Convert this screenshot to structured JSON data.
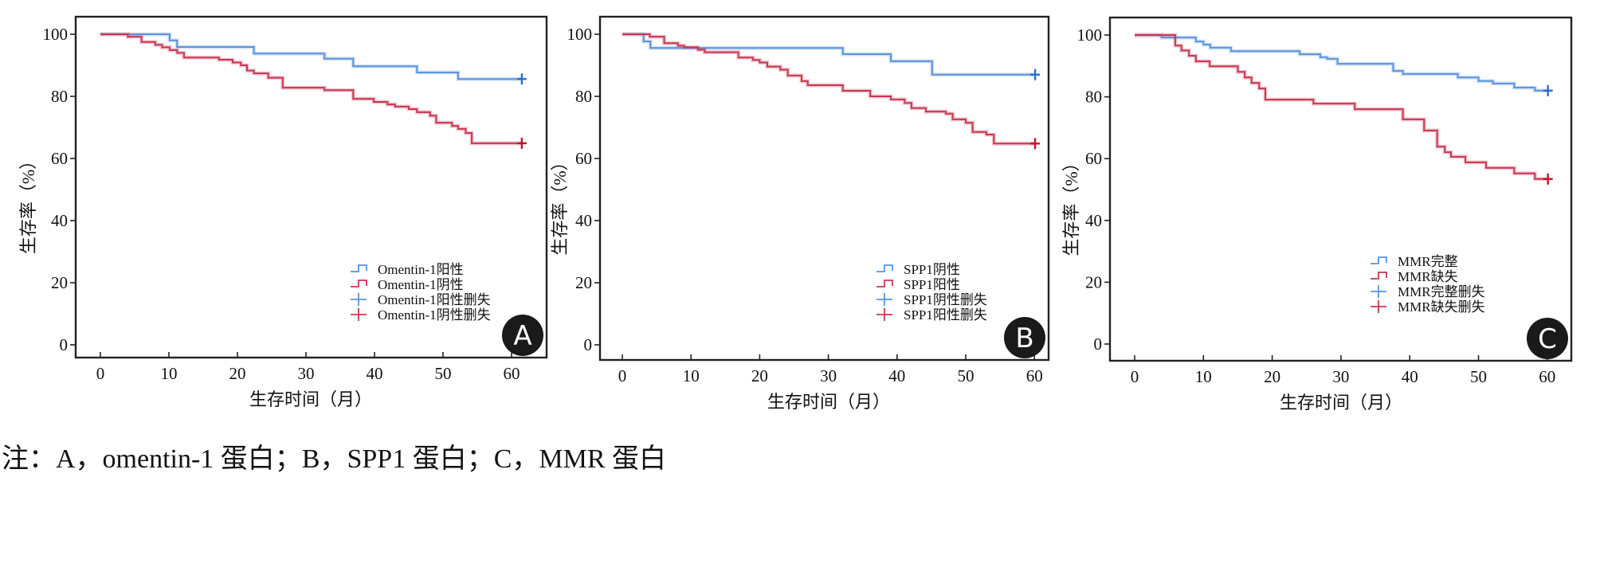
{
  "caption": "注：A，omentin-1 蛋白；B，SPP1 蛋白；C，MMR 蛋白",
  "colors": {
    "group1_line": "#5b93dc",
    "group2_line": "#c93652",
    "group1_censor": "#2f6bd0",
    "group2_censor": "#c0132e",
    "frame": "#222222",
    "badge": "#1a1a1a"
  },
  "chart_data": [
    {
      "type": "line",
      "subtype": "kaplan-meier step",
      "panel_label": "A",
      "xlabel": "生存时间（月）",
      "ylabel": "生存率（%）",
      "xlim": [
        -3,
        65
      ],
      "ylim": [
        -4,
        106
      ],
      "xticks": [
        0,
        10,
        20,
        30,
        40,
        50,
        60
      ],
      "yticks": [
        0,
        20,
        40,
        60,
        80,
        100
      ],
      "grid": false,
      "legend_position": "bottom-right",
      "legend": [
        "Omentin-1阳性",
        "Omentin-1阴性",
        "Omentin-1阳性删失",
        "Omentin-1阴性删失"
      ],
      "series": [
        {
          "name": "Omentin-1阳性",
          "color_key": "group1",
          "x": [
            0,
            10.1,
            11.2,
            22.4,
            32.7,
            36.9,
            46.2,
            52.2,
            61.5
          ],
          "y": [
            100,
            98.0,
            95.9,
            93.8,
            92.1,
            89.7,
            87.7,
            85.6,
            85.6
          ],
          "censor": {
            "x": 61.5,
            "y": 85.6
          }
        },
        {
          "name": "Omentin-1阴性",
          "color_key": "group2",
          "x": [
            0,
            4.0,
            6.0,
            8.0,
            9.0,
            10.1,
            11.2,
            12.2,
            17.3,
            19.3,
            20.5,
            21.4,
            22.4,
            24.5,
            26.6,
            32.7,
            36.9,
            39.9,
            41.9,
            43.0,
            45.0,
            46.2,
            48.1,
            49.0,
            51.3,
            52.2,
            53.3,
            54.2,
            61.5
          ],
          "y": [
            100,
            99.2,
            97.5,
            96.6,
            95.8,
            94.9,
            94.0,
            92.5,
            91.8,
            90.9,
            90.0,
            88.3,
            87.4,
            86.0,
            82.8,
            82.0,
            79.2,
            78.2,
            77.4,
            76.7,
            75.9,
            74.9,
            73.8,
            71.5,
            70.5,
            69.5,
            68.2,
            64.9,
            64.9
          ],
          "censor": {
            "x": 61.5,
            "y": 64.9
          }
        }
      ]
    },
    {
      "type": "line",
      "subtype": "kaplan-meier step",
      "panel_label": "B",
      "xlabel": "生存时间（月）",
      "ylabel": "生存率（%）",
      "xlim": [
        -3,
        65
      ],
      "ylim": [
        -4,
        106
      ],
      "xticks": [
        0,
        10,
        20,
        30,
        40,
        50,
        60
      ],
      "yticks": [
        0,
        20,
        40,
        60,
        80,
        100
      ],
      "grid": false,
      "legend_position": "bottom-right",
      "legend": [
        "SPP1阴性",
        "SPP1阳性",
        "SPP1阴性删失",
        "SPP1阳性删失"
      ],
      "series": [
        {
          "name": "SPP1阴性",
          "color_key": "group1",
          "x": [
            0,
            3.1,
            4.1,
            32.1,
            39.1,
            45.1,
            60.1
          ],
          "y": [
            100,
            97.7,
            95.6,
            93.6,
            91.3,
            87.0,
            87.0
          ],
          "censor": {
            "x": 60.1,
            "y": 87.0
          }
        },
        {
          "name": "SPP1阳性",
          "color_key": "group2",
          "x": [
            0,
            4.0,
            6.1,
            8.1,
            9.0,
            11.0,
            12.0,
            16.9,
            19.0,
            20.0,
            21.1,
            23.0,
            24.1,
            26.1,
            27.0,
            32.1,
            36.1,
            39.1,
            41.1,
            42.1,
            44.2,
            47.1,
            48.1,
            50.0,
            51.0,
            53.0,
            54.1,
            60.1
          ],
          "y": [
            100,
            99.2,
            97.1,
            96.3,
            95.8,
            95.0,
            94.2,
            92.5,
            91.7,
            90.9,
            89.6,
            88.6,
            86.7,
            84.9,
            83.6,
            81.8,
            80.0,
            79.0,
            77.9,
            76.2,
            75.1,
            74.4,
            72.6,
            71.5,
            68.5,
            67.7,
            64.8,
            64.8
          ],
          "censor": {
            "x": 60.1,
            "y": 64.8
          }
        }
      ]
    },
    {
      "type": "line",
      "subtype": "kaplan-meier step",
      "panel_label": "C",
      "xlabel": "生存时间（月）",
      "ylabel": "生存率（%）",
      "xlim": [
        -3,
        65
      ],
      "ylim": [
        -4,
        106
      ],
      "xticks": [
        0,
        10,
        20,
        30,
        40,
        50,
        60
      ],
      "yticks": [
        0,
        20,
        40,
        60,
        80,
        100
      ],
      "grid": false,
      "legend_position": "bottom-right",
      "legend": [
        "MMR完整",
        "MMR缺失",
        "MMR完整删失",
        "MMR缺失删失"
      ],
      "series": [
        {
          "name": "MMR完整",
          "color_key": "group1",
          "x": [
            0,
            3.9,
            8.9,
            10.0,
            11.0,
            14.0,
            24.0,
            27.0,
            28.0,
            29.5,
            37.6,
            39.0,
            47.0,
            50.0,
            52.1,
            55.2,
            58.2,
            60.1
          ],
          "y": [
            100,
            99.2,
            97.9,
            96.9,
            95.9,
            94.8,
            93.8,
            92.8,
            92.3,
            90.7,
            88.4,
            87.4,
            86.3,
            85.1,
            84.3,
            83.0,
            82.0,
            82.0
          ],
          "censor": {
            "x": 60.1,
            "y": 82.0
          }
        },
        {
          "name": "MMR缺失",
          "color_key": "group2",
          "x": [
            0,
            5.9,
            6.8,
            7.9,
            8.9,
            10.9,
            15.0,
            16.0,
            17.0,
            18.1,
            19.0,
            26.0,
            32.0,
            39.0,
            42.1,
            44.0,
            45.1,
            46.0,
            48.1,
            51.1,
            55.2,
            58.2,
            60.1
          ],
          "y": [
            100,
            96.6,
            95.0,
            93.3,
            91.5,
            89.9,
            88.1,
            86.3,
            84.5,
            82.7,
            79.1,
            77.8,
            76.0,
            72.7,
            69.1,
            63.9,
            62.1,
            60.6,
            58.8,
            57.0,
            55.2,
            53.4,
            53.4
          ],
          "censor": {
            "x": 60.1,
            "y": 53.4
          }
        }
      ]
    }
  ]
}
